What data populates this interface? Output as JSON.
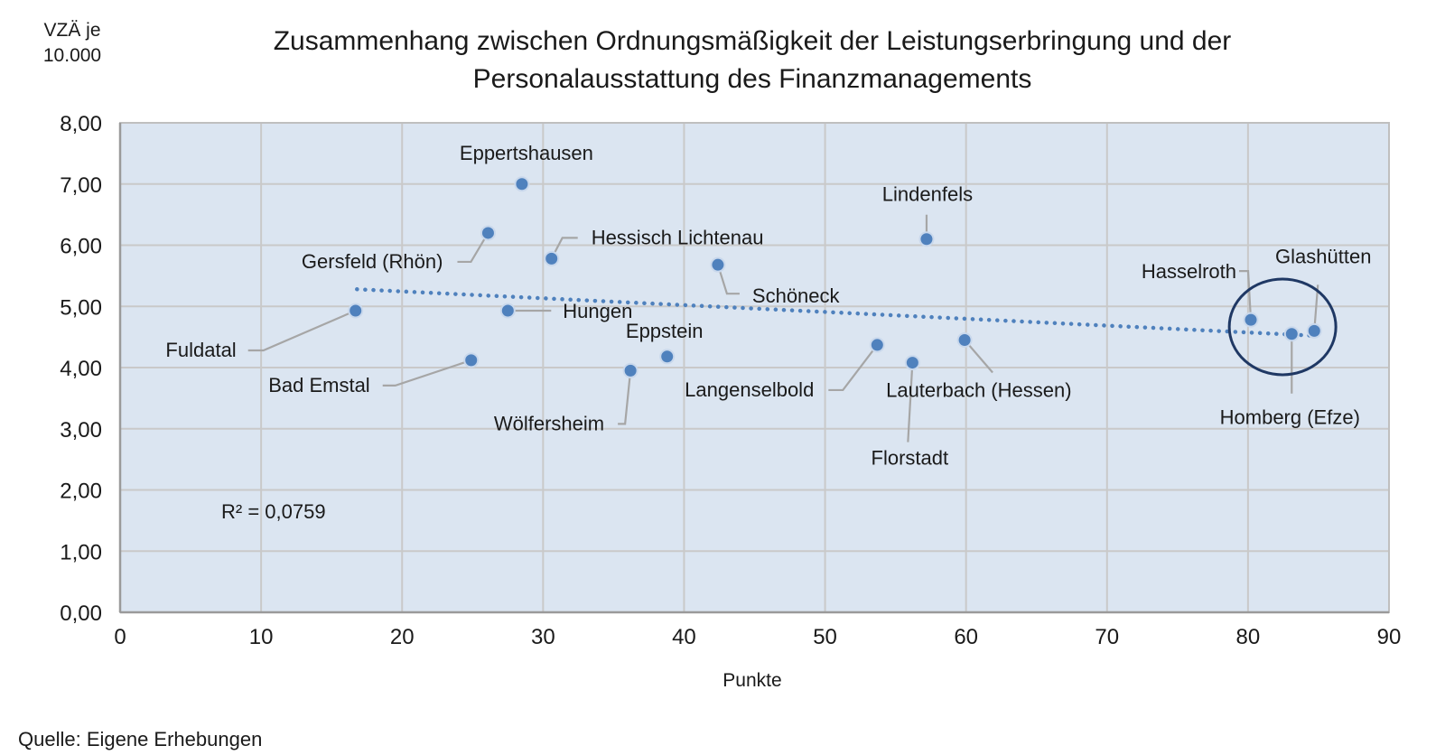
{
  "chart_data": {
    "type": "scatter",
    "title": [
      "Zusammenhang zwischen Ordnungsmäßigkeit der Leistungserbringung und der",
      "Personalausstattung des Finanzmanagements"
    ],
    "ylabel": [
      "VZÄ je",
      "10.000"
    ],
    "xlabel": "Punkte",
    "xlim": [
      0,
      90
    ],
    "ylim": [
      0,
      8
    ],
    "x_ticks": [
      "0",
      "10",
      "20",
      "30",
      "40",
      "50",
      "60",
      "70",
      "80",
      "90"
    ],
    "y_ticks": [
      "0,00",
      "1,00",
      "2,00",
      "3,00",
      "4,00",
      "5,00",
      "6,00",
      "7,00",
      "8,00"
    ],
    "grid": true,
    "plot_background": "#dbe5f1",
    "marker_color": "#4f81bd",
    "trendline": {
      "type": "linear",
      "style": "dotted",
      "color": "#4f81bd",
      "x_range": [
        16.8,
        84.8
      ],
      "y_start": 5.28,
      "y_end": 4.52
    },
    "r_squared_label": "R² = 0,0759",
    "highlight_color": "#1f3864",
    "points": [
      {
        "name": "Eppertshausen",
        "x": 28.5,
        "y": 7.0
      },
      {
        "name": "Gersfeld (Rhön)",
        "x": 26.1,
        "y": 6.2
      },
      {
        "name": "Hessisch Lichtenau",
        "x": 30.6,
        "y": 5.78
      },
      {
        "name": "Lindenfels",
        "x": 57.2,
        "y": 6.1
      },
      {
        "name": "Schöneck",
        "x": 42.4,
        "y": 5.68
      },
      {
        "name": "Hungen",
        "x": 27.5,
        "y": 4.93
      },
      {
        "name": "Fuldatal",
        "x": 16.7,
        "y": 4.93
      },
      {
        "name": "Bad Emstal",
        "x": 24.9,
        "y": 4.12
      },
      {
        "name": "Eppstein",
        "x": 38.8,
        "y": 4.18
      },
      {
        "name": "Wölfersheim",
        "x": 36.2,
        "y": 3.95
      },
      {
        "name": "Langenselbold",
        "x": 53.7,
        "y": 4.37
      },
      {
        "name": "Florstadt",
        "x": 56.2,
        "y": 4.08
      },
      {
        "name": "Lauterbach (Hessen)",
        "x": 59.9,
        "y": 4.45
      },
      {
        "name": "Hasselroth",
        "x": 80.2,
        "y": 4.78
      },
      {
        "name": "Homberg (Efze)",
        "x": 83.1,
        "y": 4.55
      },
      {
        "name": "Glashütten",
        "x": 84.7,
        "y": 4.6
      }
    ]
  },
  "source": "Quelle:  Eigene  Erhebungen"
}
